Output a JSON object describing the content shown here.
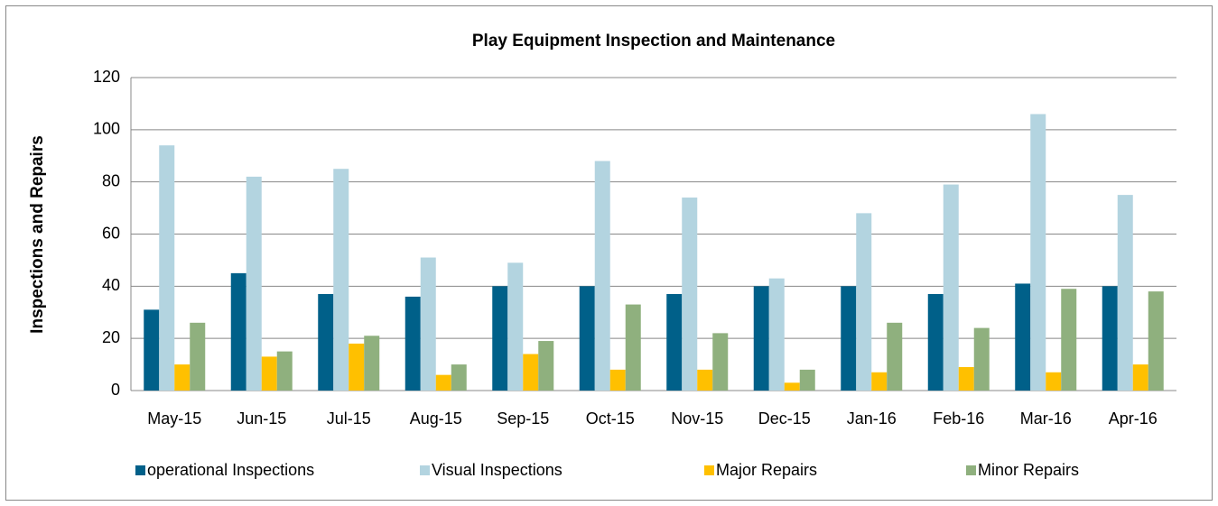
{
  "chart_data": {
    "type": "bar",
    "title": "Play Equipment Inspection and Maintenance",
    "y_label": "Inspections and Repairs",
    "categories": [
      "May-15",
      "Jun-15",
      "Jul-15",
      "Aug-15",
      "Sep-15",
      "Oct-15",
      "Nov-15",
      "Dec-15",
      "Jan-16",
      "Feb-16",
      "Mar-16",
      "Apr-16"
    ],
    "series": [
      {
        "name": "operational Inspections",
        "color": "#006089",
        "values": [
          31,
          45,
          37,
          36,
          40,
          40,
          37,
          40,
          40,
          37,
          41,
          40
        ]
      },
      {
        "name": "Visual Inspections",
        "color": "#b3d4e0",
        "values": [
          94,
          82,
          85,
          51,
          49,
          88,
          74,
          43,
          68,
          79,
          106,
          75
        ]
      },
      {
        "name": "Major Repairs",
        "color": "#ffc000",
        "values": [
          10,
          13,
          18,
          6,
          14,
          8,
          8,
          3,
          7,
          9,
          7,
          10
        ]
      },
      {
        "name": "Minor Repairs",
        "color": "#8fb07e",
        "values": [
          26,
          15,
          21,
          10,
          19,
          33,
          22,
          8,
          26,
          24,
          39,
          38
        ]
      }
    ],
    "ylim": [
      0,
      120
    ],
    "yticks": [
      0,
      20,
      40,
      60,
      80,
      100,
      120
    ],
    "grid": true,
    "legend": "bottom"
  }
}
